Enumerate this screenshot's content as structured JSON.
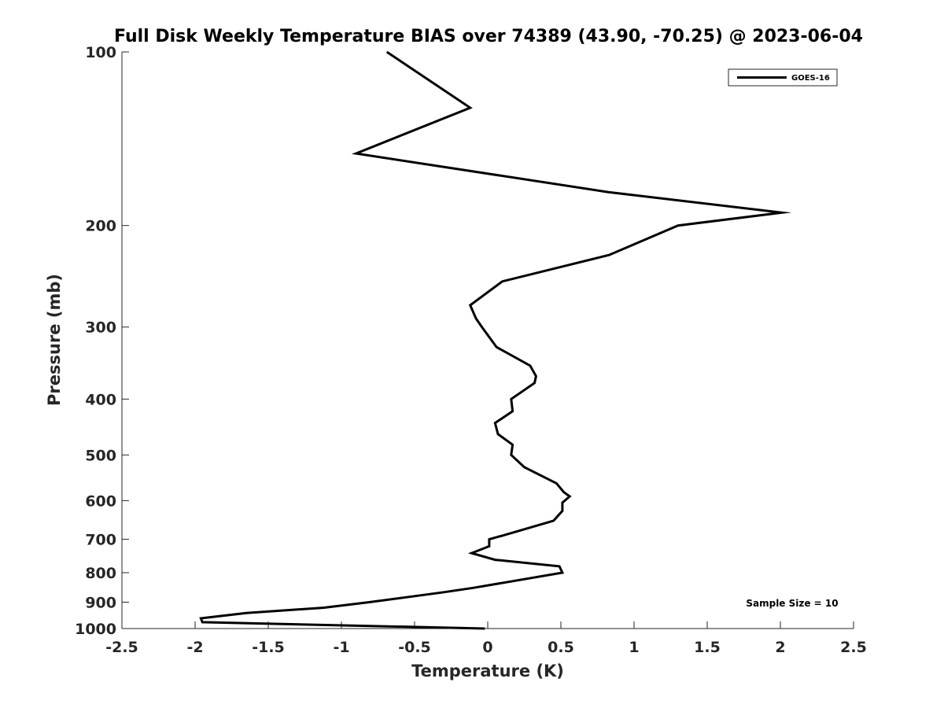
{
  "chart_data": {
    "type": "line",
    "title": "Full Disk Weekly Temperature BIAS over 74389 (43.90, -70.25) @ 2023-06-04",
    "xlabel": "Temperature (K)",
    "ylabel": "Pressure (mb)",
    "xlim": [
      -2.5,
      2.5
    ],
    "ylim": [
      1000,
      100
    ],
    "y_scale": "log",
    "x_ticks": [
      -2.5,
      -2,
      -1.5,
      -1,
      -0.5,
      0,
      0.5,
      1,
      1.5,
      2,
      2.5
    ],
    "x_tick_labels": [
      "-2.5",
      "-2",
      "-1.5",
      "-1",
      "-0.5",
      "0",
      "0.5",
      "1",
      "1.5",
      "2",
      "2.5"
    ],
    "y_ticks": [
      100,
      200,
      300,
      400,
      500,
      600,
      700,
      800,
      900,
      1000
    ],
    "y_tick_labels": [
      "100",
      "200",
      "300",
      "400",
      "500",
      "600",
      "700",
      "800",
      "900",
      "1000"
    ],
    "grid": false,
    "legend_position": "top-right",
    "series": [
      {
        "name": "GOES-16",
        "color": "#000000",
        "points": [
          {
            "x": -0.69,
            "y": 100
          },
          {
            "x": -0.12,
            "y": 125
          },
          {
            "x": -0.9,
            "y": 150
          },
          {
            "x": 0.82,
            "y": 175
          },
          {
            "x": 2.01,
            "y": 190
          },
          {
            "x": 1.3,
            "y": 200
          },
          {
            "x": 0.83,
            "y": 225
          },
          {
            "x": 0.1,
            "y": 250
          },
          {
            "x": -0.12,
            "y": 275
          },
          {
            "x": -0.08,
            "y": 290
          },
          {
            "x": -0.04,
            "y": 300
          },
          {
            "x": 0.06,
            "y": 325
          },
          {
            "x": 0.29,
            "y": 350
          },
          {
            "x": 0.33,
            "y": 365
          },
          {
            "x": 0.32,
            "y": 375
          },
          {
            "x": 0.16,
            "y": 400
          },
          {
            "x": 0.17,
            "y": 420
          },
          {
            "x": 0.05,
            "y": 440
          },
          {
            "x": 0.07,
            "y": 460
          },
          {
            "x": 0.17,
            "y": 480
          },
          {
            "x": 0.16,
            "y": 500
          },
          {
            "x": 0.25,
            "y": 525
          },
          {
            "x": 0.47,
            "y": 560
          },
          {
            "x": 0.52,
            "y": 580
          },
          {
            "x": 0.56,
            "y": 590
          },
          {
            "x": 0.51,
            "y": 605
          },
          {
            "x": 0.51,
            "y": 625
          },
          {
            "x": 0.45,
            "y": 650
          },
          {
            "x": 0.1,
            "y": 690
          },
          {
            "x": 0.01,
            "y": 700
          },
          {
            "x": 0.01,
            "y": 720
          },
          {
            "x": -0.11,
            "y": 740
          },
          {
            "x": 0.05,
            "y": 760
          },
          {
            "x": 0.49,
            "y": 780
          },
          {
            "x": 0.51,
            "y": 800
          },
          {
            "x": -0.1,
            "y": 850
          },
          {
            "x": -0.3,
            "y": 865
          },
          {
            "x": -0.52,
            "y": 880
          },
          {
            "x": -0.81,
            "y": 900
          },
          {
            "x": -1.12,
            "y": 920
          },
          {
            "x": -1.65,
            "y": 940
          },
          {
            "x": -1.96,
            "y": 960
          },
          {
            "x": -1.95,
            "y": 975
          },
          {
            "x": -0.02,
            "y": 1000
          }
        ]
      }
    ],
    "annotations": [
      {
        "text": "Sample Size = 10",
        "position": "bottom-right"
      }
    ]
  }
}
